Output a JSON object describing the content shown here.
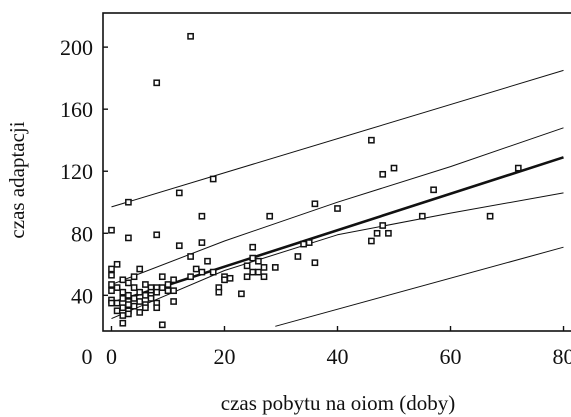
{
  "chart_data": {
    "type": "scatter",
    "title": "",
    "xlabel": "czas pobytu na oiom (doby)",
    "ylabel": "czas adaptacji",
    "xlim": [
      -1.5,
      81.5
    ],
    "ylim": [
      17,
      222
    ],
    "x_ticks": [
      0,
      20,
      40,
      60,
      80
    ],
    "y_ticks": [
      40,
      80,
      120,
      160,
      200
    ],
    "origin_label": "0",
    "grid": false,
    "legend": "none",
    "colors": {
      "ink": "#111111",
      "point_fill": "#ffffff"
    },
    "points": [
      [
        0,
        82
      ],
      [
        0,
        57
      ],
      [
        0,
        53
      ],
      [
        0,
        47
      ],
      [
        0,
        43
      ],
      [
        0,
        37
      ],
      [
        0,
        35
      ],
      [
        1,
        60
      ],
      [
        1,
        45
      ],
      [
        1,
        35
      ],
      [
        1,
        30
      ],
      [
        2,
        50
      ],
      [
        2,
        42
      ],
      [
        2,
        38
      ],
      [
        2,
        32
      ],
      [
        2,
        27
      ],
      [
        2,
        22
      ],
      [
        3,
        100
      ],
      [
        3,
        77
      ],
      [
        3,
        48
      ],
      [
        3,
        40
      ],
      [
        3,
        36
      ],
      [
        3,
        34
      ],
      [
        3,
        30
      ],
      [
        3,
        28
      ],
      [
        4,
        52
      ],
      [
        4,
        45
      ],
      [
        4,
        38
      ],
      [
        4,
        33
      ],
      [
        5,
        57
      ],
      [
        5,
        42
      ],
      [
        5,
        36
      ],
      [
        5,
        29
      ],
      [
        6,
        47
      ],
      [
        6,
        40
      ],
      [
        6,
        34
      ],
      [
        6,
        32
      ],
      [
        7,
        45
      ],
      [
        7,
        42
      ],
      [
        7,
        40
      ],
      [
        7,
        38
      ],
      [
        8,
        177
      ],
      [
        8,
        79
      ],
      [
        8,
        45
      ],
      [
        8,
        42
      ],
      [
        8,
        35
      ],
      [
        8,
        32
      ],
      [
        9,
        52
      ],
      [
        9,
        45
      ],
      [
        9,
        21
      ],
      [
        10,
        47
      ],
      [
        10,
        43
      ],
      [
        11,
        50
      ],
      [
        11,
        43
      ],
      [
        11,
        36
      ],
      [
        12,
        106
      ],
      [
        12,
        72
      ],
      [
        14,
        207
      ],
      [
        14,
        65
      ],
      [
        14,
        52
      ],
      [
        15,
        57
      ],
      [
        16,
        91
      ],
      [
        16,
        74
      ],
      [
        16,
        55
      ],
      [
        17,
        62
      ],
      [
        18,
        115
      ],
      [
        18,
        55
      ],
      [
        19,
        45
      ],
      [
        19,
        42
      ],
      [
        20,
        52
      ],
      [
        20,
        50
      ],
      [
        21,
        51
      ],
      [
        23,
        41
      ],
      [
        24,
        52
      ],
      [
        24,
        59
      ],
      [
        25,
        71
      ],
      [
        25,
        55
      ],
      [
        25,
        64
      ],
      [
        26,
        55
      ],
      [
        26,
        62
      ],
      [
        27,
        52
      ],
      [
        27,
        58
      ],
      [
        28,
        91
      ],
      [
        29,
        58
      ],
      [
        33,
        65
      ],
      [
        34,
        73
      ],
      [
        35,
        74
      ],
      [
        36,
        99
      ],
      [
        36,
        61
      ],
      [
        40,
        96
      ],
      [
        46,
        140
      ],
      [
        46,
        75
      ],
      [
        47,
        80
      ],
      [
        48,
        118
      ],
      [
        48,
        85
      ],
      [
        49,
        80
      ],
      [
        50,
        122
      ],
      [
        55,
        91
      ],
      [
        57,
        108
      ],
      [
        67,
        91
      ],
      [
        72,
        122
      ]
    ],
    "fit_line": {
      "x": [
        0,
        80
      ],
      "y": [
        35,
        129
      ]
    },
    "confidence_band": {
      "upper": {
        "x": [
          0,
          20,
          40,
          60,
          80
        ],
        "y": [
          47,
          75,
          100,
          123,
          148
        ]
      },
      "lower": {
        "x": [
          0,
          20,
          40,
          60,
          80
        ],
        "y": [
          25,
          56,
          79,
          93,
          106
        ]
      }
    },
    "prediction_band": {
      "upper": {
        "x": [
          0,
          80
        ],
        "y": [
          97,
          185
        ]
      },
      "lower": {
        "x": [
          29,
          80
        ],
        "y": [
          20,
          71
        ]
      }
    }
  }
}
